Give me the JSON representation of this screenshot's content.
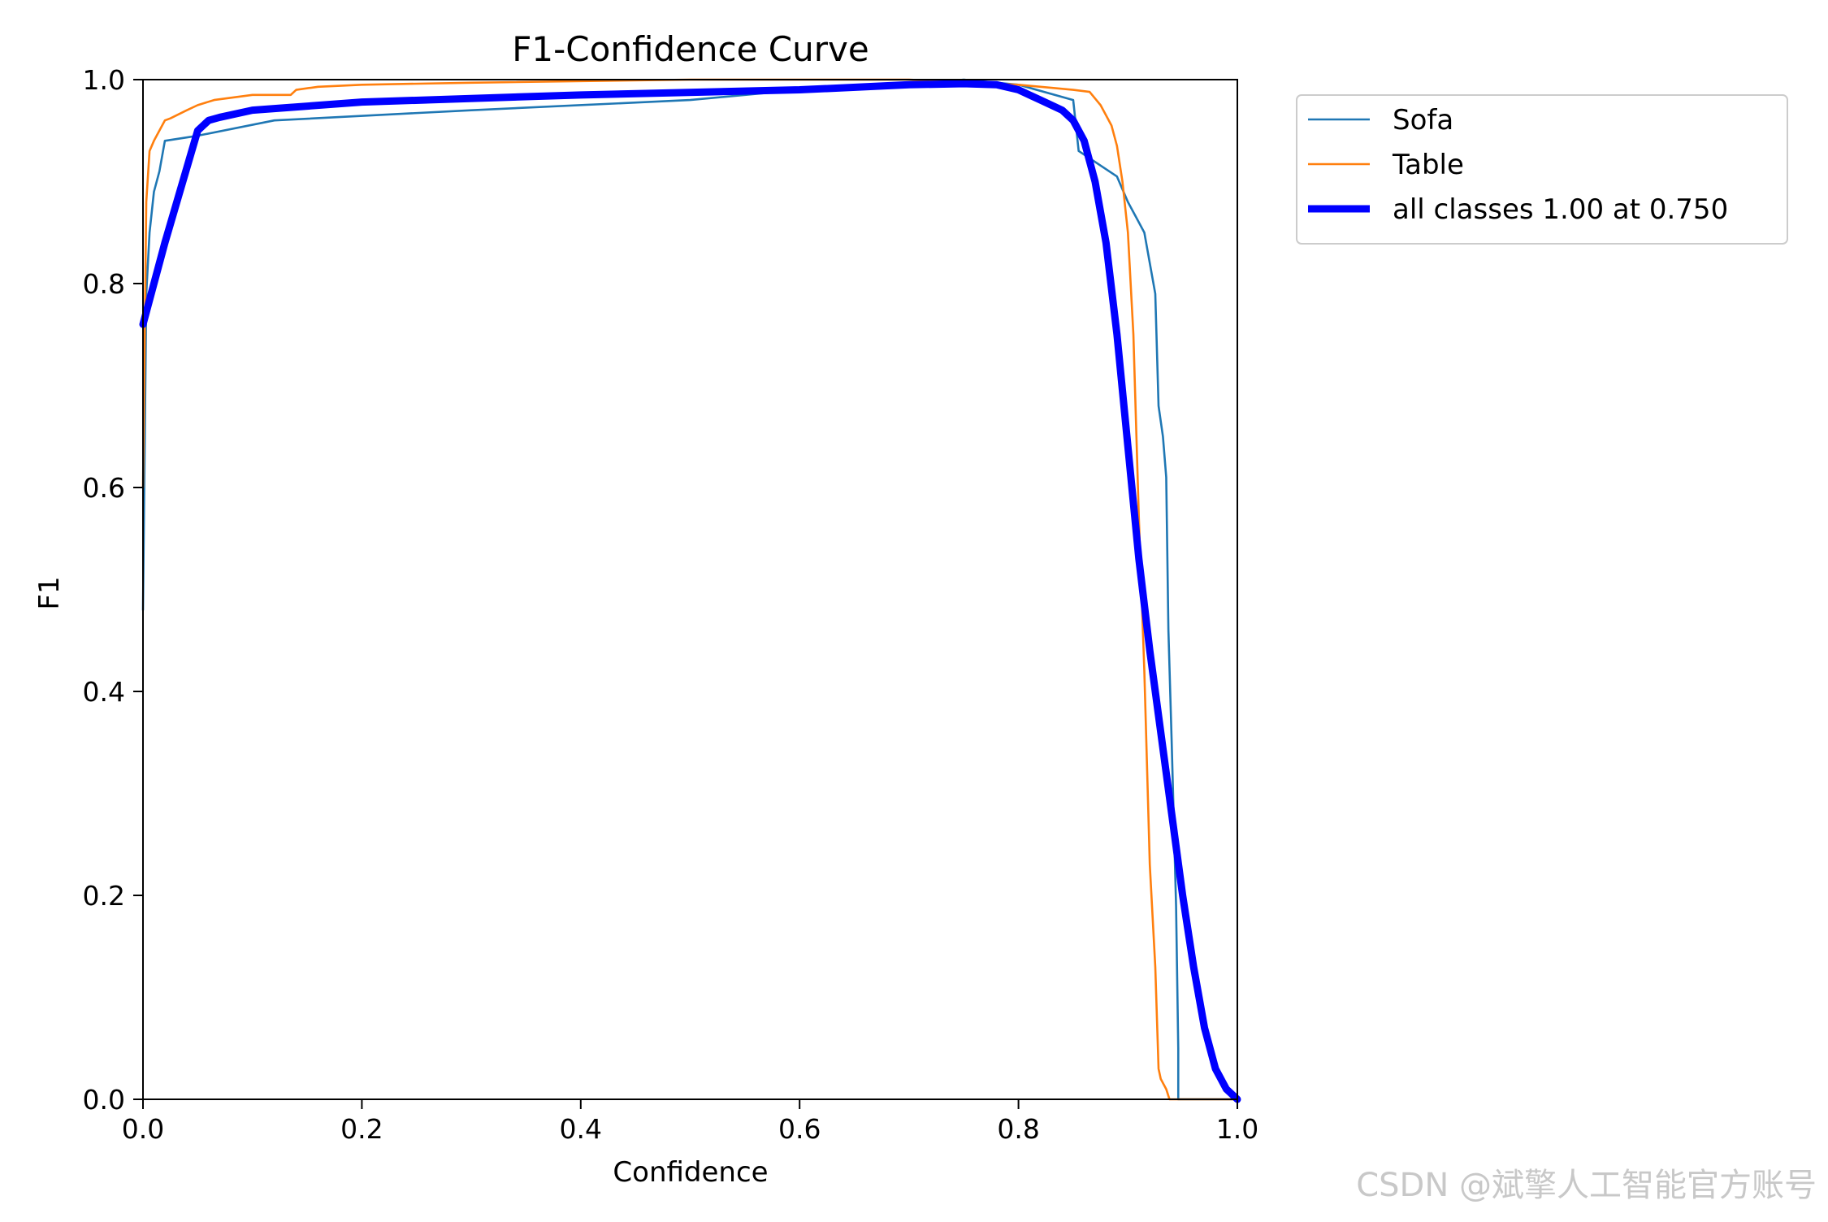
{
  "chart_data": {
    "type": "line",
    "title": "F1-Confidence Curve",
    "xlabel": "Confidence",
    "ylabel": "F1",
    "xlim": [
      0,
      1
    ],
    "ylim": [
      0,
      1
    ],
    "x_ticks": [
      "0.0",
      "0.2",
      "0.4",
      "0.6",
      "0.8",
      "1.0"
    ],
    "y_ticks": [
      "0.0",
      "0.2",
      "0.4",
      "0.6",
      "0.8",
      "1.0"
    ],
    "grid": false,
    "legend_position": "outside-top-right",
    "series": [
      {
        "name": "Sofa",
        "color": "#1f77b4",
        "x": [
          0.0,
          0.003,
          0.006,
          0.01,
          0.015,
          0.02,
          0.05,
          0.12,
          0.3,
          0.5,
          0.6,
          0.7,
          0.75,
          0.8,
          0.85,
          0.855,
          0.89,
          0.9,
          0.915,
          0.92,
          0.925,
          0.928,
          0.932,
          0.935,
          0.937,
          0.94,
          0.944,
          0.946,
          0.946,
          1.0
        ],
        "y": [
          0.48,
          0.79,
          0.85,
          0.89,
          0.91,
          0.94,
          0.945,
          0.96,
          0.97,
          0.98,
          0.99,
          0.995,
          1.0,
          0.995,
          0.98,
          0.93,
          0.905,
          0.88,
          0.85,
          0.82,
          0.79,
          0.68,
          0.65,
          0.61,
          0.46,
          0.35,
          0.19,
          0.05,
          0.0,
          0.0
        ]
      },
      {
        "name": "Table",
        "color": "#ff7f0e",
        "x": [
          0.0,
          0.003,
          0.006,
          0.01,
          0.015,
          0.02,
          0.025,
          0.04,
          0.05,
          0.065,
          0.1,
          0.135,
          0.14,
          0.16,
          0.2,
          0.3,
          0.5,
          0.7,
          0.8,
          0.85,
          0.865,
          0.875,
          0.88,
          0.885,
          0.89,
          0.895,
          0.9,
          0.905,
          0.91,
          0.915,
          0.92,
          0.925,
          0.928,
          0.93,
          0.935,
          0.938,
          1.0
        ],
        "y": [
          0.6,
          0.88,
          0.93,
          0.94,
          0.95,
          0.96,
          0.962,
          0.97,
          0.975,
          0.98,
          0.985,
          0.985,
          0.99,
          0.993,
          0.995,
          0.997,
          1.0,
          1.0,
          0.995,
          0.99,
          0.988,
          0.975,
          0.965,
          0.955,
          0.935,
          0.9,
          0.85,
          0.75,
          0.57,
          0.42,
          0.23,
          0.13,
          0.03,
          0.02,
          0.01,
          0.0,
          0.0
        ]
      },
      {
        "name": "all classes 1.00 at 0.750",
        "color": "#0000ff",
        "bold": true,
        "x": [
          0.0,
          0.02,
          0.05,
          0.06,
          0.07,
          0.1,
          0.2,
          0.4,
          0.6,
          0.7,
          0.75,
          0.78,
          0.8,
          0.82,
          0.84,
          0.85,
          0.86,
          0.87,
          0.88,
          0.89,
          0.9,
          0.91,
          0.92,
          0.93,
          0.94,
          0.95,
          0.96,
          0.97,
          0.98,
          0.99,
          1.0
        ],
        "y": [
          0.76,
          0.84,
          0.95,
          0.96,
          0.963,
          0.97,
          0.978,
          0.985,
          0.99,
          0.995,
          0.996,
          0.995,
          0.99,
          0.98,
          0.97,
          0.96,
          0.94,
          0.9,
          0.84,
          0.75,
          0.64,
          0.53,
          0.44,
          0.36,
          0.28,
          0.2,
          0.13,
          0.07,
          0.03,
          0.01,
          0.0
        ]
      }
    ]
  },
  "watermark": "CSDN @斌擎人工智能官方账号"
}
